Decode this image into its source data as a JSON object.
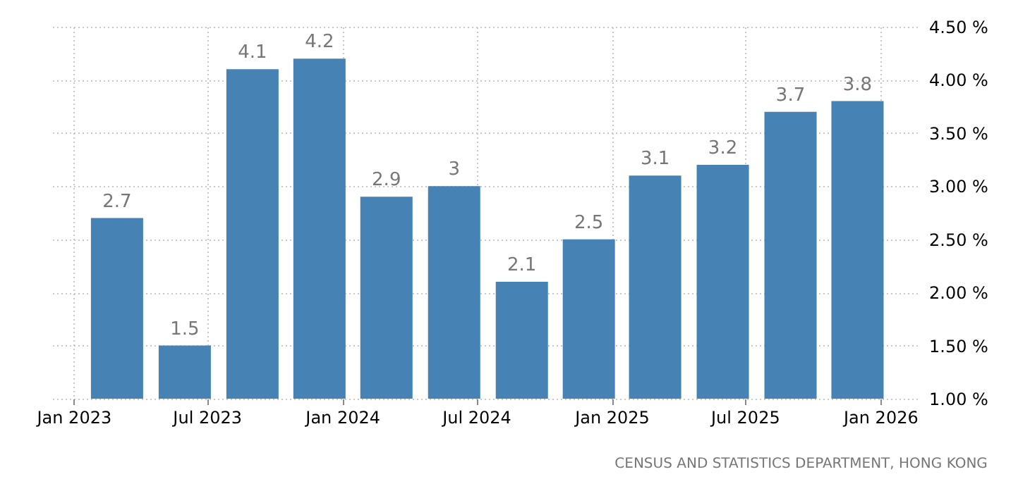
{
  "chart_data": {
    "type": "bar",
    "x": [
      "2023-03",
      "2023-06",
      "2023-09",
      "2023-12",
      "2024-03",
      "2024-06",
      "2024-09",
      "2024-12",
      "2025-03",
      "2025-06",
      "2025-09",
      "2025-12"
    ],
    "values": [
      2.7,
      1.5,
      4.1,
      4.2,
      2.9,
      3,
      2.1,
      2.5,
      3.1,
      3.2,
      3.7,
      3.8
    ],
    "color": "#4682b4",
    "data_labels": true,
    "xlim": [
      "2022-12",
      "2026-02-20"
    ],
    "xticks": [
      {
        "value": "2023-01",
        "label": "Jan 2023"
      },
      {
        "value": "2023-07",
        "label": "Jul 2023"
      },
      {
        "value": "2024-01",
        "label": "Jan 2024"
      },
      {
        "value": "2024-07",
        "label": "Jul 2024"
      },
      {
        "value": "2025-01",
        "label": "Jan 2025"
      },
      {
        "value": "2025-07",
        "label": "Jul 2025"
      },
      {
        "value": "2026-01",
        "label": "Jan 2026"
      }
    ],
    "ylim": [
      1,
      4.5
    ],
    "yticks": [
      {
        "value": 1,
        "label": "1.00 %"
      },
      {
        "value": 1.5,
        "label": "1.50 %"
      },
      {
        "value": 2,
        "label": "2.00 %"
      },
      {
        "value": 2.5,
        "label": "2.50 %"
      },
      {
        "value": 3,
        "label": "3.00 %"
      },
      {
        "value": 3.5,
        "label": "3.50 %"
      },
      {
        "value": 4,
        "label": "4.00 %"
      },
      {
        "value": 4.5,
        "label": "4.50 %"
      }
    ],
    "grid": true,
    "annotations": [
      "CENSUS AND STATISTICS DEPARTMENT, HONG KONG"
    ]
  }
}
